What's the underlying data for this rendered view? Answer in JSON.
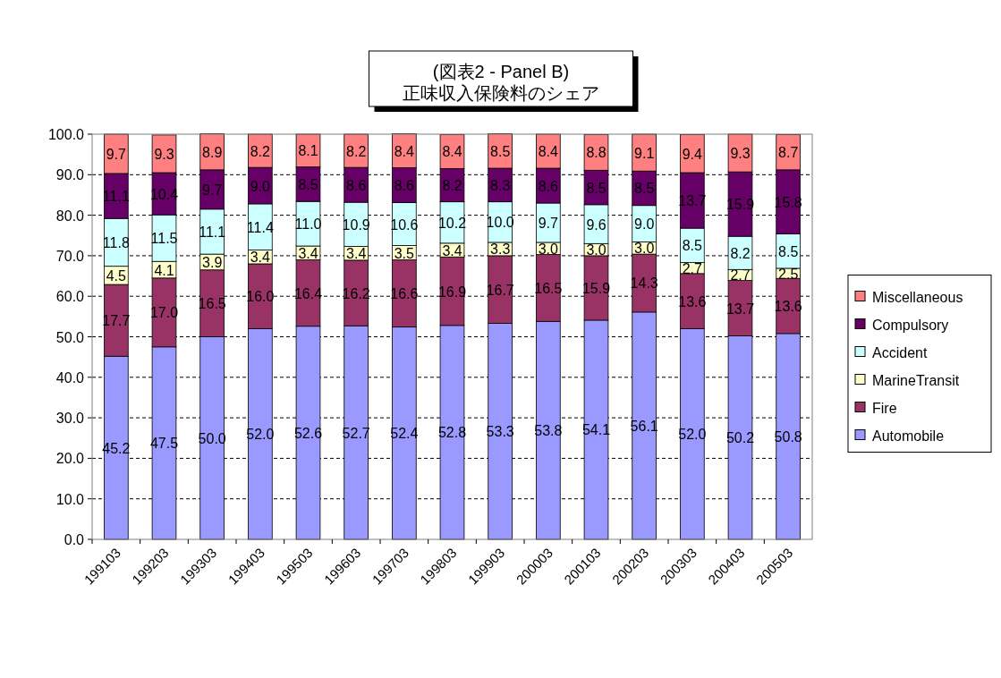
{
  "chart_data": {
    "type": "bar",
    "stacked": true,
    "title": "(図表2 - Panel B)\n正味収入保険料のシェア",
    "categories": [
      "199103",
      "199203",
      "199303",
      "199403",
      "199503",
      "199603",
      "199703",
      "199803",
      "199903",
      "200003",
      "200103",
      "200203",
      "200303",
      "200403",
      "200503"
    ],
    "series": [
      {
        "name": "Automobile",
        "color": "#9999ff",
        "values": [
          45.2,
          47.5,
          50.0,
          52.0,
          52.6,
          52.7,
          52.4,
          52.8,
          53.3,
          53.8,
          54.1,
          56.1,
          52.0,
          50.2,
          50.8
        ],
        "value_labels": [
          "45.2",
          "47.5",
          "50.0",
          "52.0",
          "52.6",
          "52.7",
          "52.4",
          "52.8",
          "53.3",
          "53.8",
          "54.1",
          "56.1",
          "52.0",
          "50.2",
          "50.8"
        ]
      },
      {
        "name": "Fire",
        "color": "#993366",
        "values": [
          17.7,
          17.0,
          16.5,
          16.0,
          16.4,
          16.2,
          16.6,
          16.9,
          16.7,
          16.5,
          15.9,
          14.3,
          13.6,
          13.7,
          13.6
        ],
        "value_labels": [
          "17.7",
          "17.0",
          "16.5",
          "16.0",
          "16.4",
          "16.2",
          "16.6",
          "16.9",
          "16.7",
          "16.5",
          "15.9",
          "14.3",
          "13.6",
          "13.7",
          "13.6"
        ]
      },
      {
        "name": "MarineTransit",
        "color": "#ffffcc",
        "values": [
          4.5,
          4.1,
          3.9,
          3.4,
          3.4,
          3.4,
          3.5,
          3.4,
          3.3,
          3.0,
          3.0,
          3.0,
          2.7,
          2.7,
          2.5
        ],
        "value_labels": [
          "4.5",
          "4.1",
          "3.9",
          "3.4",
          "3.4",
          "3.4",
          "3.5",
          "3.4",
          "3.3",
          "3.0",
          "3.0",
          "3.0",
          "2.7",
          "2.7",
          "2.5"
        ]
      },
      {
        "name": "Accident",
        "color": "#ccffff",
        "values": [
          11.8,
          11.5,
          11.1,
          11.4,
          11.0,
          10.9,
          10.6,
          10.2,
          10.0,
          9.7,
          9.6,
          9.0,
          8.5,
          8.2,
          8.5
        ],
        "value_labels": [
          "11.8",
          "11.5",
          "11.1",
          "11.4",
          "11.0",
          "10.9",
          "10.6",
          "10.2",
          "10.0",
          "9.7",
          "9.6",
          "9.0",
          "8.5",
          "8.2",
          "8.5"
        ]
      },
      {
        "name": "Compulsory",
        "color": "#660066",
        "values": [
          11.1,
          10.4,
          9.7,
          9.0,
          8.5,
          8.6,
          8.6,
          8.2,
          8.3,
          8.6,
          8.5,
          8.5,
          13.7,
          15.9,
          15.8
        ],
        "value_labels": [
          "11.1",
          "10.4",
          "9.7",
          "9.0",
          "8.5",
          "8.6",
          "8.6",
          "8.2",
          "8.3",
          "8.6",
          "8.5",
          "8.5",
          "13.7",
          "15.9",
          "15.8"
        ]
      },
      {
        "name": "Miscellaneous",
        "color": "#ff8080",
        "values": [
          9.7,
          9.3,
          8.9,
          8.2,
          8.1,
          8.2,
          8.4,
          8.4,
          8.5,
          8.4,
          8.8,
          9.1,
          9.4,
          9.3,
          8.7
        ],
        "value_labels": [
          "9.7",
          "9.3",
          "8.9",
          "8.2",
          "8.1",
          "8.2",
          "8.4",
          "8.4",
          "8.5",
          "8.4",
          "8.8",
          "9.1",
          "9.4",
          "9.3",
          "8.7"
        ]
      }
    ],
    "ylim": [
      0,
      100
    ],
    "yticks": [
      {
        "value": 0,
        "label": "0.0"
      },
      {
        "value": 10,
        "label": "10.0"
      },
      {
        "value": 20,
        "label": "20.0"
      },
      {
        "value": 30,
        "label": "30.0"
      },
      {
        "value": 40,
        "label": "40.0"
      },
      {
        "value": 50,
        "label": "50.0"
      },
      {
        "value": 60,
        "label": "60.0"
      },
      {
        "value": 70,
        "label": "70.0"
      },
      {
        "value": 80,
        "label": "80.0"
      },
      {
        "value": 90,
        "label": "90.0"
      },
      {
        "value": 100,
        "label": "100.0"
      }
    ],
    "grid": "y",
    "legend": "right"
  }
}
